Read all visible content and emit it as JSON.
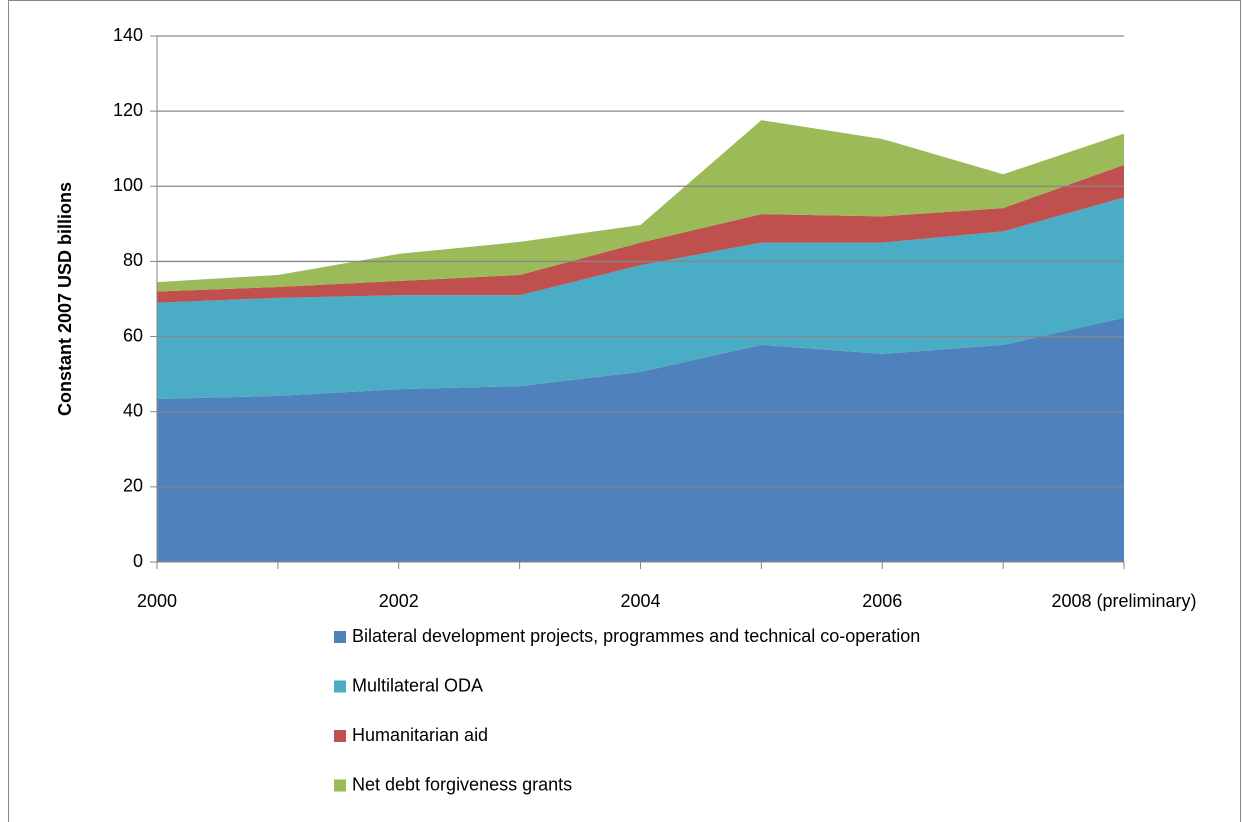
{
  "chart_data": {
    "type": "stacked_area",
    "y_label": "Constant 2007 USD billions",
    "categories": [
      "2000",
      null,
      "2002",
      null,
      "2004",
      null,
      "2006",
      null,
      "2008 (preliminary)"
    ],
    "series": [
      {
        "name": "Bilateral development projects, programmes and technical co-operation",
        "color": "#4f81bd",
        "values": [
          43.4,
          44.2,
          46,
          46.8,
          50.6,
          57.8,
          55.4,
          57.8,
          65
        ]
      },
      {
        "name": "Multilateral ODA",
        "color": "#4bacc6",
        "values": [
          25.6,
          26.1,
          25,
          24.2,
          28.4,
          27.2,
          29.6,
          30.2,
          32
        ]
      },
      {
        "name": "Humanitarian aid",
        "color": "#c0504d",
        "values": [
          3,
          2.9,
          3.8,
          5.4,
          6,
          7.6,
          7,
          6.2,
          8.7
        ]
      },
      {
        "name": "Net debt forgiveness grants",
        "color": "#9bbb59",
        "values": [
          2.5,
          3.2,
          7.2,
          8.8,
          4.7,
          25,
          20.6,
          9,
          8.3
        ]
      }
    ],
    "ylim": [
      0,
      140
    ],
    "yticks": [
      0,
      20,
      40,
      60,
      80,
      100,
      120,
      140
    ],
    "grid": true,
    "legend": "bottom"
  }
}
